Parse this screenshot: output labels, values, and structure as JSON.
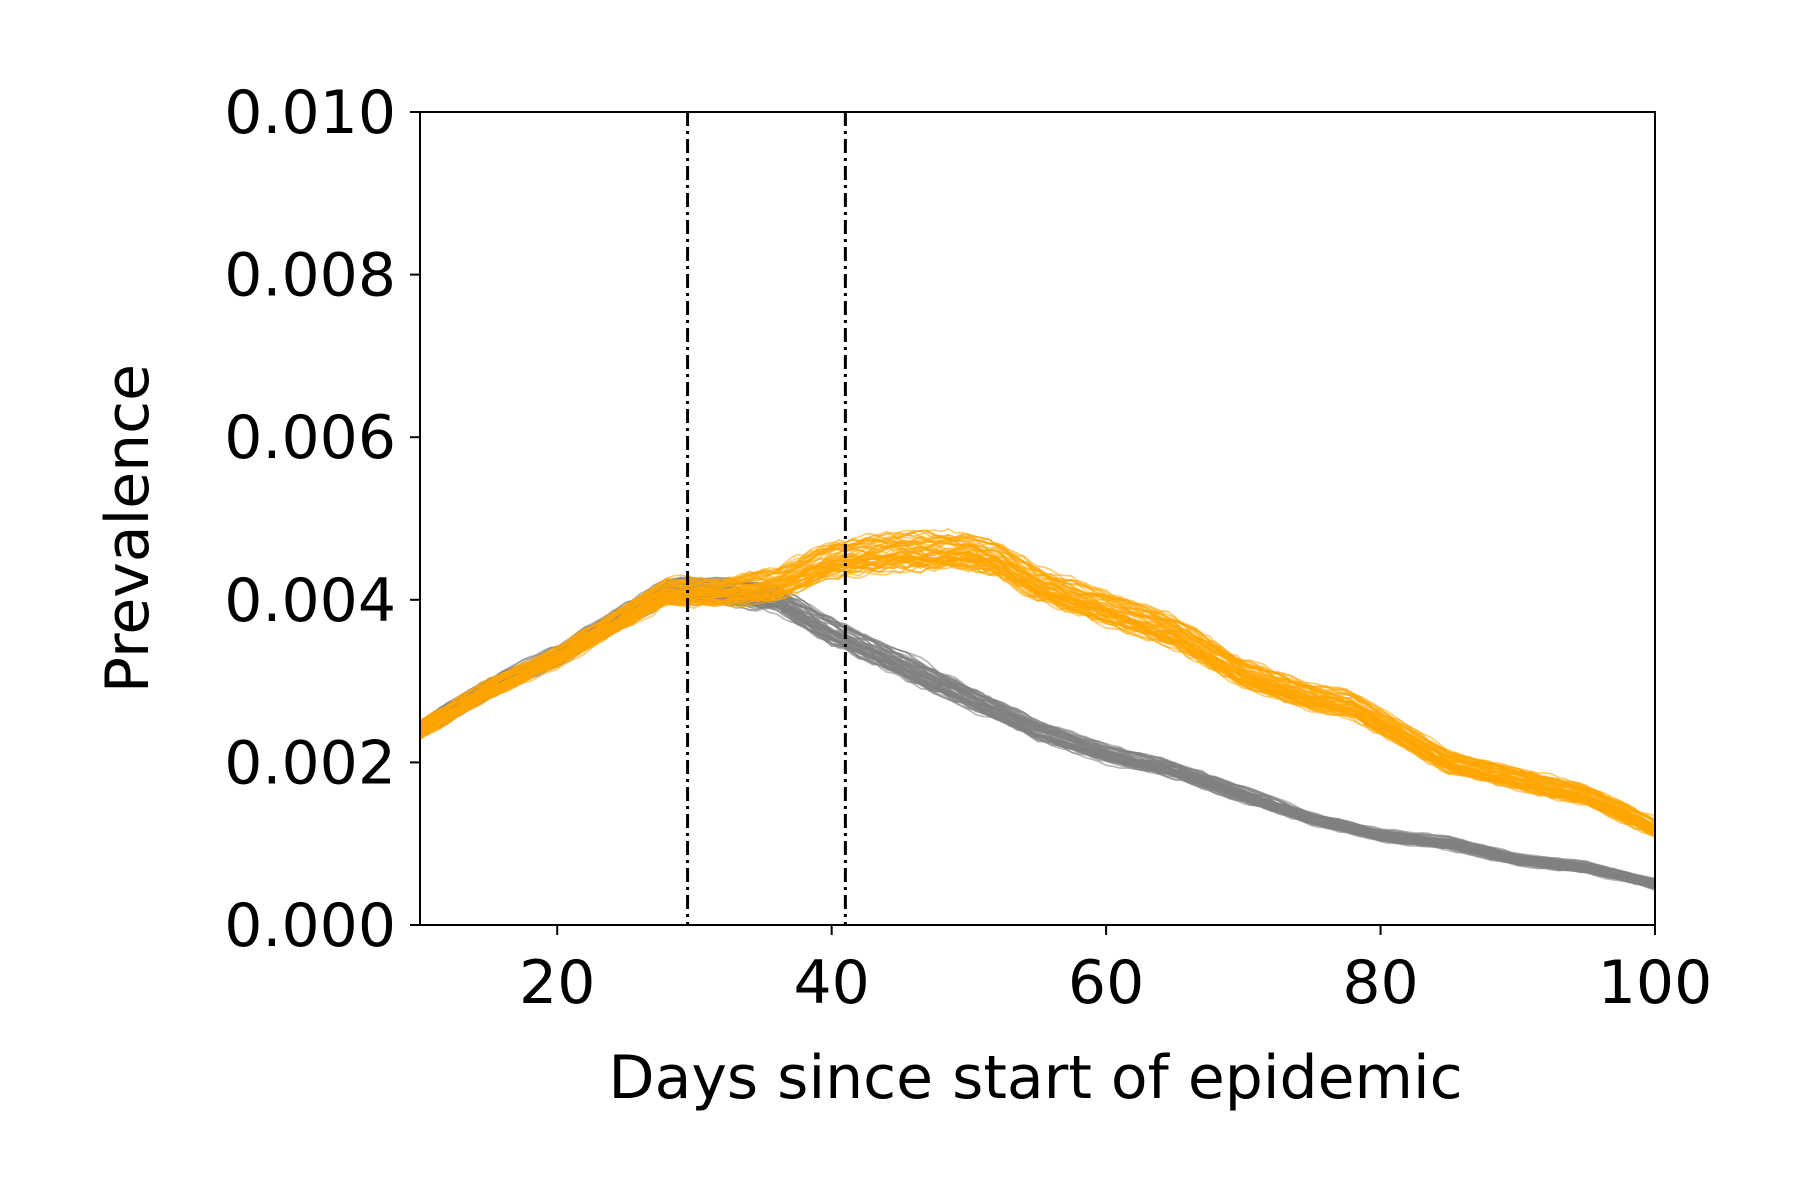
{
  "chart_data": {
    "type": "line",
    "title": "",
    "xlabel": "Days since start of epidemic",
    "ylabel": "Prevalence",
    "xlim": [
      10,
      100
    ],
    "ylim": [
      0.0,
      0.01
    ],
    "xticks": [
      20,
      40,
      60,
      80,
      100
    ],
    "xtick_labels": [
      "20",
      "40",
      "60",
      "80",
      "100"
    ],
    "yticks": [
      0.0,
      0.002,
      0.004,
      0.006,
      0.008,
      0.01
    ],
    "ytick_labels": [
      "0.000",
      "0.002",
      "0.004",
      "0.006",
      "0.008",
      "0.010"
    ],
    "grid": false,
    "legend": "none",
    "vertical_lines": [
      {
        "x": 29.5,
        "style": "dash-dot",
        "color": "#000000"
      },
      {
        "x": 41,
        "style": "dash-dot",
        "color": "#000000"
      }
    ],
    "series": [
      {
        "color": "#808080",
        "ensemble_runs": 60,
        "x": [
          10,
          15,
          20,
          25,
          28,
          32,
          36,
          40,
          45,
          50,
          55,
          60,
          65,
          70,
          75,
          80,
          85,
          90,
          95,
          100
        ],
        "values": [
          0.0024,
          0.0029,
          0.0033,
          0.0038,
          0.0041,
          0.0041,
          0.004,
          0.0036,
          0.0032,
          0.0028,
          0.0024,
          0.0021,
          0.0019,
          0.0016,
          0.0013,
          0.0011,
          0.001,
          0.0008,
          0.0007,
          0.0005
        ],
        "band_halfwidth": [
          0.00015,
          0.00015,
          0.00016,
          0.00018,
          0.0002,
          0.0002,
          0.0002,
          0.00022,
          0.0002,
          0.00018,
          0.00016,
          0.00014,
          0.00013,
          0.00012,
          0.0001,
          0.0001,
          0.0001,
          9e-05,
          9e-05,
          8e-05
        ]
      },
      {
        "color": "#FFA500",
        "ensemble_runs": 60,
        "x": [
          10,
          15,
          20,
          25,
          28,
          32,
          36,
          40,
          45,
          50,
          52,
          55,
          60,
          65,
          70,
          75,
          78,
          80,
          85,
          90,
          95,
          100
        ],
        "values": [
          0.0024,
          0.0029,
          0.0033,
          0.0038,
          0.0041,
          0.0041,
          0.0042,
          0.0045,
          0.0046,
          0.0046,
          0.0045,
          0.0042,
          0.0039,
          0.0036,
          0.0031,
          0.0028,
          0.0027,
          0.0025,
          0.002,
          0.0018,
          0.0016,
          0.0012
        ],
        "band_halfwidth": [
          0.00015,
          0.00015,
          0.00016,
          0.00018,
          0.0002,
          0.00022,
          0.00025,
          0.00028,
          0.00028,
          0.00028,
          0.00026,
          0.00025,
          0.00025,
          0.00024,
          0.00022,
          0.0002,
          0.0002,
          0.0002,
          0.00018,
          0.00017,
          0.00016,
          0.00015
        ]
      }
    ]
  }
}
